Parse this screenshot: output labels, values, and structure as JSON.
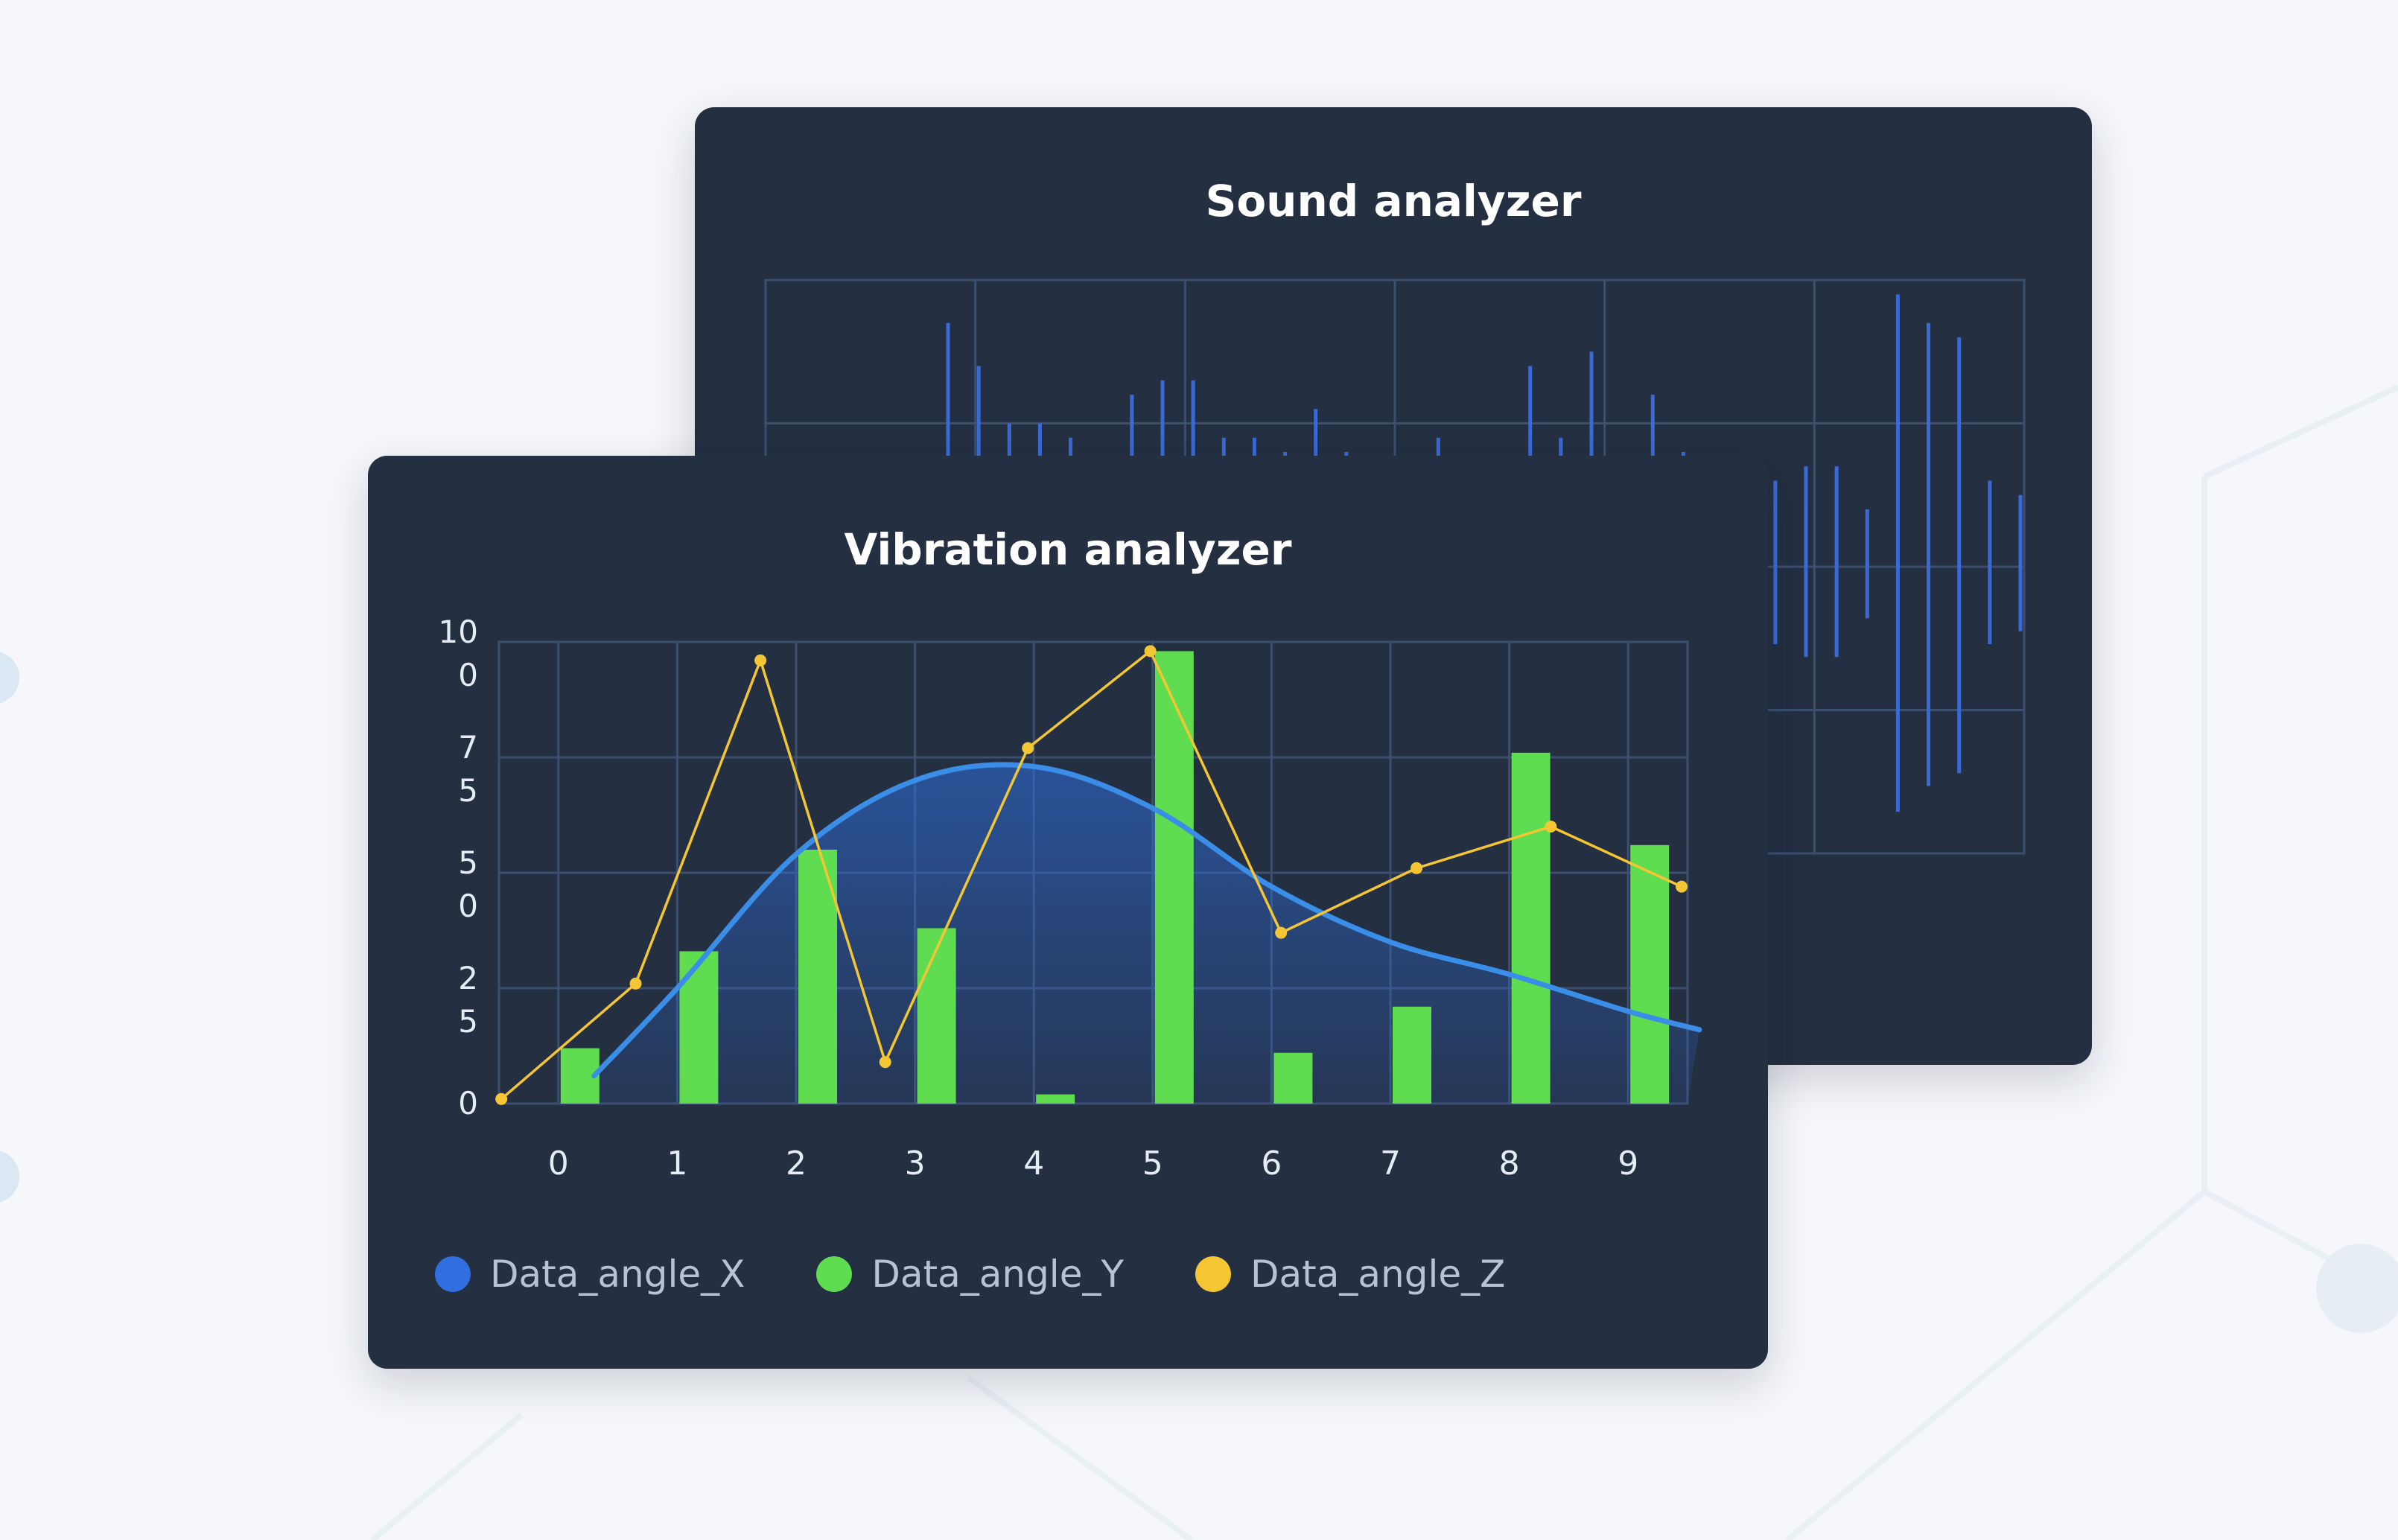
{
  "colors": {
    "card_bg": "#242f42",
    "grid": "#3c4f6f",
    "x_series": "#2f6fe0",
    "x_line": "#3a8ee8",
    "y_series": "#5fdc4f",
    "z_series": "#f5c634",
    "tick_text": "#e6ecf5",
    "legend_text": "#b8c2d6",
    "sound_bars": "#3a6ad6"
  },
  "chart_data": [
    {
      "type": "line",
      "title": "Sound analyzer",
      "grid": true,
      "note": "waveform bars rising/falling from a center line, no visible axis labels",
      "series": [
        {
          "values": [
            0.85,
            0.7,
            0.5,
            0.5,
            0.45,
            0.25,
            0.6,
            0.65,
            0.65,
            0.45,
            0.45,
            0.4,
            0.55,
            0.4,
            0.35,
            0.35,
            0.45,
            0.35,
            0.3,
            0.7,
            0.45,
            0.75,
            0.35,
            0.6,
            0.4,
            0.25,
            0.35,
            0.3,
            0.35,
            0.35,
            0.2,
            0.95,
            0.85,
            0.8,
            0.3,
            0.25
          ]
        }
      ]
    },
    {
      "type": "bar",
      "title": "Vibration analyzer",
      "grid": true,
      "categories": [
        "0",
        "1",
        "2",
        "3",
        "4",
        "5",
        "6",
        "7",
        "8",
        "9"
      ],
      "y_tick_labels": [
        {
          "value": 0,
          "lines": [
            "0"
          ]
        },
        {
          "value": 25,
          "lines": [
            "2",
            "5"
          ]
        },
        {
          "value": 50,
          "lines": [
            "5",
            "0"
          ]
        },
        {
          "value": 75,
          "lines": [
            "7",
            "5"
          ]
        },
        {
          "value": 100,
          "lines": [
            "10",
            "0"
          ]
        }
      ],
      "ylim": [
        0,
        100
      ],
      "legend_position": "bottom-left",
      "series": [
        {
          "name": "Data_angle_X",
          "type": "area",
          "color": "#2f6fe0",
          "x": [
            0.3,
            1.0,
            2.0,
            3.0,
            4.0,
            5.0,
            6.0,
            7.0,
            8.0,
            9.0,
            9.6
          ],
          "values": [
            6,
            25,
            54,
            70,
            73,
            64,
            47,
            35,
            28,
            20,
            16
          ]
        },
        {
          "name": "Data_angle_Y",
          "type": "bar",
          "color": "#5fdc4f",
          "values": [
            12,
            33,
            55,
            38,
            2,
            98,
            11,
            21,
            76,
            56
          ]
        },
        {
          "name": "Data_angle_Z",
          "type": "line",
          "color": "#f5c634",
          "x": [
            -0.48,
            0.65,
            1.7,
            2.75,
            3.95,
            4.98,
            6.08,
            7.22,
            8.35,
            9.45
          ],
          "values": [
            1,
            26,
            96,
            9,
            77,
            98,
            37,
            51,
            60,
            47
          ]
        }
      ]
    }
  ]
}
